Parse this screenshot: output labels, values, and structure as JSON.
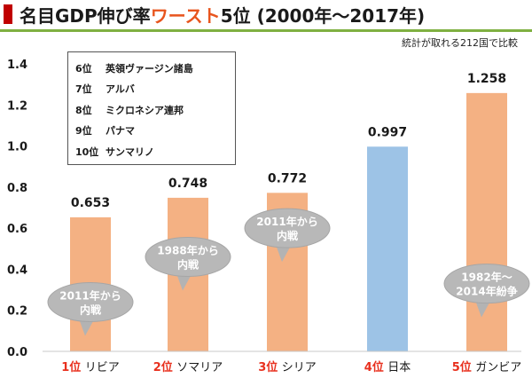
{
  "title": {
    "part1": "名目GDP伸び率",
    "part2": "ワースト",
    "part3": "5位 (2000年～2017年)"
  },
  "note": "統計が取れる212国で比較",
  "legend_box": [
    {
      "rank": "6位",
      "name": "英領ヴァージン諸島"
    },
    {
      "rank": "7位",
      "name": "アルバ"
    },
    {
      "rank": "8位",
      "name": "ミクロネシア連邦"
    },
    {
      "rank": "9位",
      "name": "パナマ"
    },
    {
      "rank": "10位",
      "name": "サンマリノ"
    }
  ],
  "chart_data": {
    "type": "bar",
    "categories": [
      {
        "rank": "1位",
        "country": "リビア"
      },
      {
        "rank": "2位",
        "country": "ソマリア"
      },
      {
        "rank": "3位",
        "country": "シリア"
      },
      {
        "rank": "4位",
        "country": "日本"
      },
      {
        "rank": "5位",
        "country": "ガンビア"
      }
    ],
    "values": [
      0.653,
      0.748,
      0.772,
      0.997,
      1.258
    ],
    "value_labels": [
      "0.653",
      "0.748",
      "0.772",
      "0.997",
      "1.258"
    ],
    "colors": [
      "#f4b183",
      "#f4b183",
      "#f4b183",
      "#9dc3e6",
      "#f4b183"
    ],
    "ylim": [
      0,
      1.4
    ],
    "yticks": [
      "0.0",
      "0.2",
      "0.4",
      "0.6",
      "0.8",
      "1.0",
      "1.2",
      "1.4"
    ],
    "grid": false,
    "annotations": [
      {
        "bar": 0,
        "lines": [
          "2011年から",
          "内戦"
        ],
        "at_value": 0.24
      },
      {
        "bar": 1,
        "lines": [
          "1988年から",
          "内戦"
        ],
        "at_value": 0.46
      },
      {
        "bar": 2,
        "lines": [
          "2011年から",
          "内戦"
        ],
        "at_value": 0.6
      },
      {
        "bar": 4,
        "lines": [
          "1982年～",
          "2014年紛争"
        ],
        "at_value": 0.33
      }
    ]
  }
}
